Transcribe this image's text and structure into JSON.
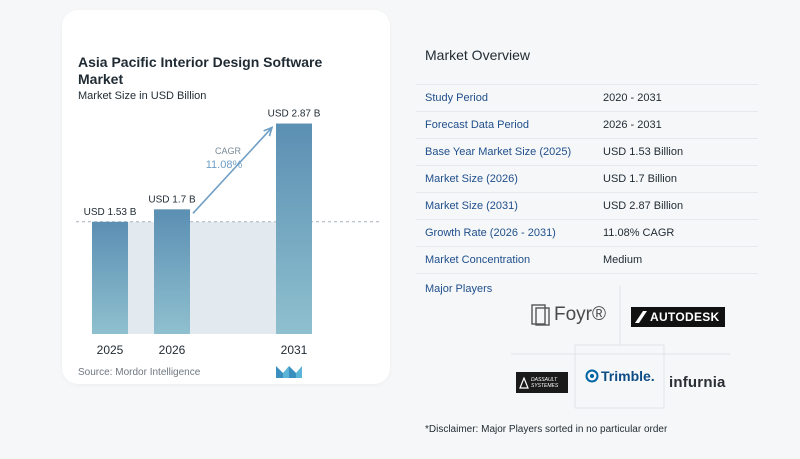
{
  "chart_data": {
    "type": "bar",
    "title": "Asia Pacific Interior Design Software Market",
    "subtitle": "Market Size in USD Billion",
    "categories": [
      "2025",
      "2026",
      "2031"
    ],
    "values": [
      1.53,
      1.7,
      2.87
    ],
    "value_labels": [
      "USD 1.53 B",
      "USD 1.7 B",
      "USD 2.87 B"
    ],
    "cagr_label": "CAGR",
    "cagr_value": "11.08%",
    "ylim": [
      0,
      3.0
    ],
    "grid": false,
    "colors": {
      "bar_top": "#5b8fb3",
      "bar_bottom": "#8fc0cf",
      "shade": "#e2e9ef",
      "arrow": "#6f9ec5",
      "dashed": "#a7b3bd"
    }
  },
  "source": "Source:  Mordor Intelligence",
  "overview": {
    "title": "Market Overview",
    "rows": [
      {
        "label": "Study Period",
        "value": "2020 - 2031"
      },
      {
        "label": "Forecast Data Period",
        "value": "2026 - 2031"
      },
      {
        "label": "Base Year Market Size (2025)",
        "value": "USD 1.53 Billion"
      },
      {
        "label": "Market Size (2026)",
        "value": "USD 1.7 Billion"
      },
      {
        "label": "Market Size (2031)",
        "value": "USD 2.87 Billion"
      },
      {
        "label": "Growth Rate (2026 - 2031)",
        "value": "11.08% CAGR"
      },
      {
        "label": "Market Concentration",
        "value": "Medium"
      }
    ]
  },
  "players": {
    "title": "Major Players",
    "names": [
      "Foyr®",
      "AUTODESK",
      "DASSAULT SYSTEMES",
      "Trimble.",
      "infurnia"
    ]
  },
  "disclaimer": "*Disclaimer: Major Players sorted in no particular order"
}
